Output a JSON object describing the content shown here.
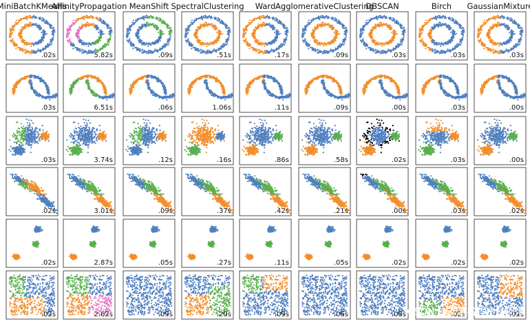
{
  "chart_data": {
    "type": "scatter",
    "grid": false,
    "algorithms": [
      "MiniBatchKMeans",
      "AffinityPropagation",
      "MeanShift",
      "SpectralClustering",
      "Ward",
      "AgglomerativeClustering",
      "DBSCAN",
      "Birch",
      "GaussianMixture"
    ],
    "datasets": [
      "noisy-circles",
      "noisy-moons",
      "varied-blobs",
      "anisotropic-blobs",
      "blobs",
      "no-structure"
    ],
    "colors": {
      "blue": "#4f7fbf",
      "orange": "#f28e2b",
      "green": "#5aae4f",
      "pink": "#e377c2",
      "noise": "#000000"
    },
    "times": [
      [
        ".02s",
        "5.82s",
        ".09s",
        ".51s",
        ".17s",
        ".09s",
        ".03s",
        ".03s",
        ".03s"
      ],
      [
        ".03s",
        "6.51s",
        ".06s",
        "1.06s",
        ".11s",
        ".09s",
        ".00s",
        ".03s",
        ".00s"
      ],
      [
        ".03s",
        "3.74s",
        ".12s",
        ".16s",
        ".86s",
        ".58s",
        ".02s",
        ".03s",
        ".00s"
      ],
      [
        ".02s",
        "3.01s",
        ".09s",
        ".37s",
        ".42s",
        ".21s",
        ".00s",
        ".03s",
        ".02s"
      ],
      [
        ".02s",
        "2.87s",
        ".05s",
        ".27s",
        ".11s",
        ".05s",
        ".02s",
        ".02s",
        ".02s"
      ],
      [
        ".02s",
        "2.62s",
        ".09s",
        ".20s",
        ".09s",
        ".06s",
        ".08s",
        ".02s",
        ".02s"
      ]
    ]
  },
  "watermark": "CSDN @非著名程序员阿博"
}
